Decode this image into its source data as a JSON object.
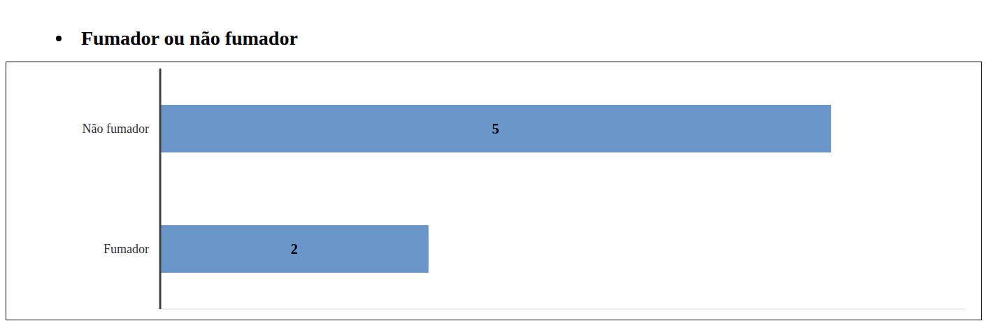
{
  "chart_data": {
    "type": "bar",
    "title": "Fumador ou não fumador",
    "orientation": "horizontal",
    "categories": [
      "Não fumador",
      "Fumador"
    ],
    "values": [
      5,
      2
    ],
    "color": "#6a95c8",
    "xlim": [
      0,
      6
    ],
    "tick_labels": "y",
    "data_labels": true,
    "grid": false
  }
}
